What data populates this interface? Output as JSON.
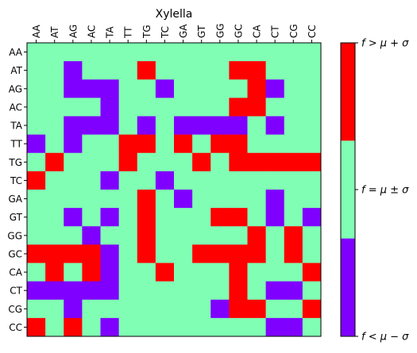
{
  "chart_data": {
    "type": "heatmap",
    "title": "Xylella",
    "columns": [
      "AA",
      "AT",
      "AG",
      "AC",
      "TA",
      "TT",
      "TG",
      "TC",
      "GA",
      "GT",
      "GG",
      "GC",
      "CA",
      "CT",
      "CG",
      "CC"
    ],
    "rows": [
      "AA",
      "AT",
      "AG",
      "AC",
      "TA",
      "TT",
      "TG",
      "TC",
      "GA",
      "GT",
      "GG",
      "GC",
      "CA",
      "CT",
      "CG",
      "CC"
    ],
    "values": [
      [
        0,
        0,
        0,
        0,
        0,
        0,
        0,
        0,
        0,
        0,
        0,
        0,
        0,
        0,
        0,
        0
      ],
      [
        0,
        0,
        -1,
        0,
        0,
        0,
        1,
        0,
        0,
        0,
        0,
        1,
        1,
        0,
        0,
        0
      ],
      [
        0,
        0,
        -1,
        -1,
        -1,
        0,
        0,
        -1,
        0,
        0,
        0,
        0,
        1,
        -1,
        0,
        0
      ],
      [
        0,
        0,
        0,
        0,
        -1,
        0,
        0,
        0,
        0,
        0,
        0,
        1,
        1,
        0,
        0,
        0
      ],
      [
        0,
        0,
        -1,
        -1,
        -1,
        0,
        -1,
        0,
        -1,
        -1,
        -1,
        -1,
        0,
        -1,
        0,
        0
      ],
      [
        -1,
        0,
        -1,
        0,
        0,
        1,
        1,
        0,
        1,
        0,
        1,
        1,
        0,
        0,
        0,
        0
      ],
      [
        0,
        1,
        0,
        0,
        0,
        1,
        0,
        0,
        0,
        1,
        0,
        1,
        1,
        1,
        1,
        1
      ],
      [
        1,
        0,
        0,
        0,
        -1,
        0,
        0,
        -1,
        0,
        0,
        0,
        0,
        0,
        0,
        0,
        0
      ],
      [
        0,
        0,
        0,
        0,
        0,
        0,
        1,
        0,
        -1,
        0,
        0,
        0,
        0,
        -1,
        0,
        0
      ],
      [
        0,
        0,
        -1,
        0,
        -1,
        0,
        1,
        0,
        0,
        0,
        1,
        1,
        0,
        -1,
        0,
        -1
      ],
      [
        0,
        0,
        0,
        -1,
        0,
        0,
        1,
        0,
        0,
        0,
        0,
        0,
        1,
        0,
        1,
        0
      ],
      [
        1,
        1,
        1,
        1,
        -1,
        0,
        1,
        0,
        0,
        1,
        1,
        1,
        1,
        0,
        1,
        0
      ],
      [
        0,
        1,
        0,
        1,
        -1,
        0,
        0,
        1,
        0,
        0,
        0,
        1,
        0,
        0,
        0,
        1
      ],
      [
        -1,
        -1,
        -1,
        -1,
        -1,
        0,
        0,
        0,
        0,
        0,
        0,
        1,
        0,
        -1,
        -1,
        0
      ],
      [
        0,
        0,
        -1,
        0,
        0,
        0,
        0,
        0,
        0,
        0,
        -1,
        1,
        1,
        0,
        0,
        1
      ],
      [
        1,
        0,
        1,
        0,
        -1,
        0,
        0,
        0,
        0,
        0,
        0,
        0,
        0,
        -1,
        -1,
        0
      ]
    ],
    "legend": {
      "levels": [
        -1,
        0,
        1
      ],
      "labels": [
        "f < μ − σ",
        "f = μ ± σ",
        "f > μ + σ"
      ],
      "colors": [
        "#8000ff",
        "#80ffb4",
        "#ff0000"
      ]
    }
  }
}
